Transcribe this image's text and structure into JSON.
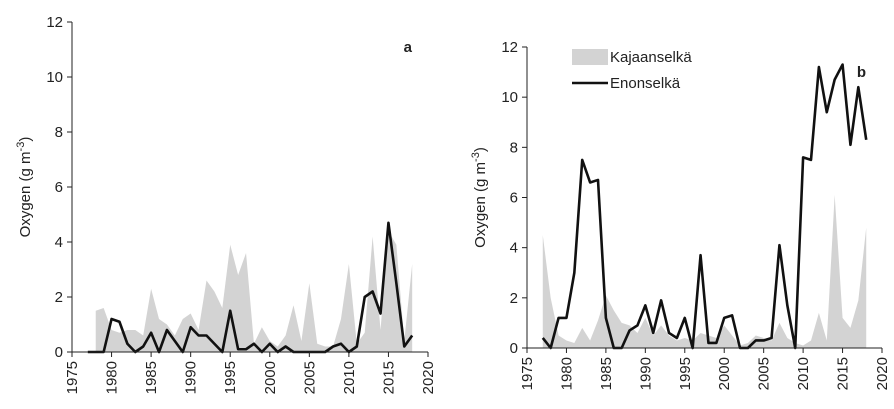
{
  "chart_data": [
    {
      "type": "line",
      "panel": "a",
      "ylabel": {
        "text": "Oxygen (g m",
        "sup": "-3",
        "close": ")"
      },
      "x": [
        1977,
        1978,
        1979,
        1980,
        1981,
        1982,
        1983,
        1984,
        1985,
        1986,
        1987,
        1988,
        1989,
        1990,
        1991,
        1992,
        1993,
        1994,
        1995,
        1996,
        1997,
        1998,
        1999,
        2000,
        2001,
        2002,
        2003,
        2004,
        2005,
        2006,
        2007,
        2008,
        2009,
        2010,
        2011,
        2012,
        2013,
        2014,
        2015,
        2016,
        2017,
        2018
      ],
      "series": [
        {
          "style": "area",
          "color": "#d3d3d3",
          "values": [
            null,
            1.5,
            1.6,
            0.8,
            0.7,
            0.8,
            0.8,
            0.6,
            2.3,
            1.2,
            1.0,
            0.6,
            1.2,
            1.4,
            0.8,
            2.6,
            2.2,
            1.6,
            3.9,
            2.8,
            3.6,
            0.3,
            0.9,
            0.4,
            0.2,
            0.6,
            1.7,
            0.4,
            2.5,
            0.3,
            0.2,
            0.2,
            1.2,
            3.2,
            0.3,
            0.7,
            4.2,
            0.8,
            4.4,
            3.9,
            0.4,
            3.2
          ]
        },
        {
          "style": "line",
          "color": "#111111",
          "values": [
            0,
            0,
            0,
            1.2,
            1.1,
            0.3,
            0,
            0.2,
            0.7,
            0,
            0.8,
            0.4,
            0,
            0.9,
            0.6,
            0.6,
            0.3,
            0,
            1.5,
            0.1,
            0.1,
            0.3,
            0,
            0.3,
            0,
            0.2,
            0,
            0,
            0,
            0,
            0,
            0.2,
            0.3,
            0,
            0.2,
            2.0,
            2.2,
            1.4,
            4.7,
            2.5,
            0.2,
            0.6
          ]
        }
      ],
      "xlim": [
        1975,
        2020
      ],
      "xticks": [
        1975,
        1980,
        1985,
        1990,
        1995,
        2000,
        2005,
        2010,
        2015,
        2020
      ],
      "ylim": [
        0,
        12
      ],
      "yticks": [
        0,
        2,
        4,
        6,
        8,
        10,
        12
      ]
    },
    {
      "type": "line",
      "panel": "b",
      "ylabel": {
        "text": "Oxygen (g m",
        "sup": "-3",
        "close": ")"
      },
      "legend": "upper left",
      "x": [
        1977,
        1978,
        1979,
        1980,
        1981,
        1982,
        1983,
        1984,
        1985,
        1986,
        1987,
        1988,
        1989,
        1990,
        1991,
        1992,
        1993,
        1994,
        1995,
        1996,
        1997,
        1998,
        1999,
        2000,
        2001,
        2002,
        2003,
        2004,
        2005,
        2006,
        2007,
        2008,
        2009,
        2010,
        2011,
        2012,
        2013,
        2014,
        2015,
        2016,
        2017,
        2018
      ],
      "series": [
        {
          "name": "Kajaanselkä",
          "style": "area",
          "color": "#d3d3d3",
          "values": [
            4.5,
            2.0,
            0.5,
            0.3,
            0.2,
            0.8,
            0.3,
            1.1,
            2.1,
            1.5,
            1.0,
            0.9,
            0.6,
            1.2,
            0.5,
            0.9,
            0.5,
            0.3,
            0.4,
            0.3,
            0.6,
            0.5,
            0.4,
            0.9,
            0.5,
            0.1,
            0.2,
            0.5,
            0.4,
            0.3,
            1.0,
            0.4,
            0.2,
            0.1,
            0.3,
            1.4,
            0.3,
            6.1,
            1.2,
            0.8,
            1.9,
            4.8
          ]
        },
        {
          "name": "Enonselkä",
          "style": "line",
          "color": "#111111",
          "values": [
            0.4,
            0,
            1.2,
            1.2,
            3.0,
            7.5,
            6.6,
            6.7,
            1.2,
            0,
            0,
            0.7,
            0.9,
            1.7,
            0.6,
            1.9,
            0.6,
            0.4,
            1.2,
            0,
            3.7,
            0.2,
            0.2,
            1.2,
            1.3,
            0,
            0,
            0.3,
            0.3,
            0.4,
            4.1,
            1.7,
            0,
            7.6,
            7.5,
            11.2,
            9.4,
            10.7,
            11.3,
            8.1,
            10.4,
            8.3
          ]
        }
      ],
      "xlim": [
        1975,
        2020
      ],
      "xticks": [
        1975,
        1980,
        1985,
        1990,
        1995,
        2000,
        2005,
        2010,
        2015,
        2020
      ],
      "ylim": [
        0,
        12
      ],
      "yticks": [
        0,
        2,
        4,
        6,
        8,
        10,
        12
      ]
    }
  ]
}
